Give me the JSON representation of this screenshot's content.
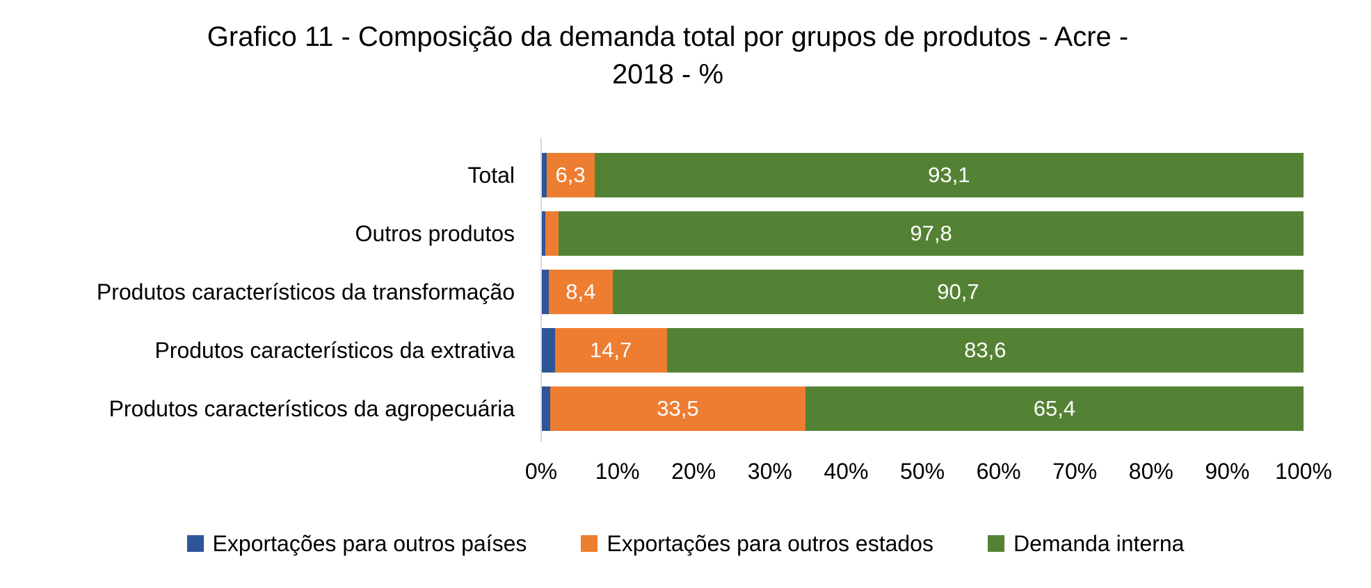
{
  "header": {
    "title_lines": [
      "Grafico 11 - Composição da demanda total por grupos de produtos - Acre  -",
      "2018 - %"
    ]
  },
  "chart_data": {
    "type": "bar",
    "orientation": "horizontal",
    "stacked": true,
    "title": "Grafico 11 - Composição da demanda total por grupos de produtos - Acre - 2018 - %",
    "categories": [
      "Total",
      "Outros produtos",
      "Produtos característicos da transformação",
      "Produtos característicos da extrativa",
      "Produtos característicos da agropecuária"
    ],
    "series": [
      {
        "name": "Exportações para outros países",
        "color": "#2E5596",
        "values": [
          0.6,
          0.5,
          0.9,
          1.7,
          1.1
        ],
        "labels": [
          "",
          "",
          "",
          "",
          ""
        ]
      },
      {
        "name": "Exportações para outros estados",
        "color": "#ED7D31",
        "values": [
          6.3,
          1.7,
          8.4,
          14.7,
          33.5
        ],
        "labels": [
          "6,3",
          "",
          "8,4",
          "14,7",
          "33,5"
        ]
      },
      {
        "name": "Demanda interna",
        "color": "#548235",
        "values": [
          93.1,
          97.8,
          90.7,
          83.6,
          65.4
        ],
        "labels": [
          "93,1",
          "97,8",
          "90,7",
          "83,6",
          "65,4"
        ]
      }
    ],
    "x_axis": {
      "min": 0,
      "max": 100,
      "ticks": [
        "0%",
        "10%",
        "20%",
        "30%",
        "40%",
        "50%",
        "60%",
        "70%",
        "80%",
        "90%",
        "100%"
      ]
    },
    "legend": {
      "position": "bottom",
      "entries": [
        "Exportações para outros países",
        "Exportações para outros estados",
        "Demanda interna"
      ]
    },
    "value_label_color": "#FFFFFF",
    "axis_line_color": "#D9D9D9"
  }
}
